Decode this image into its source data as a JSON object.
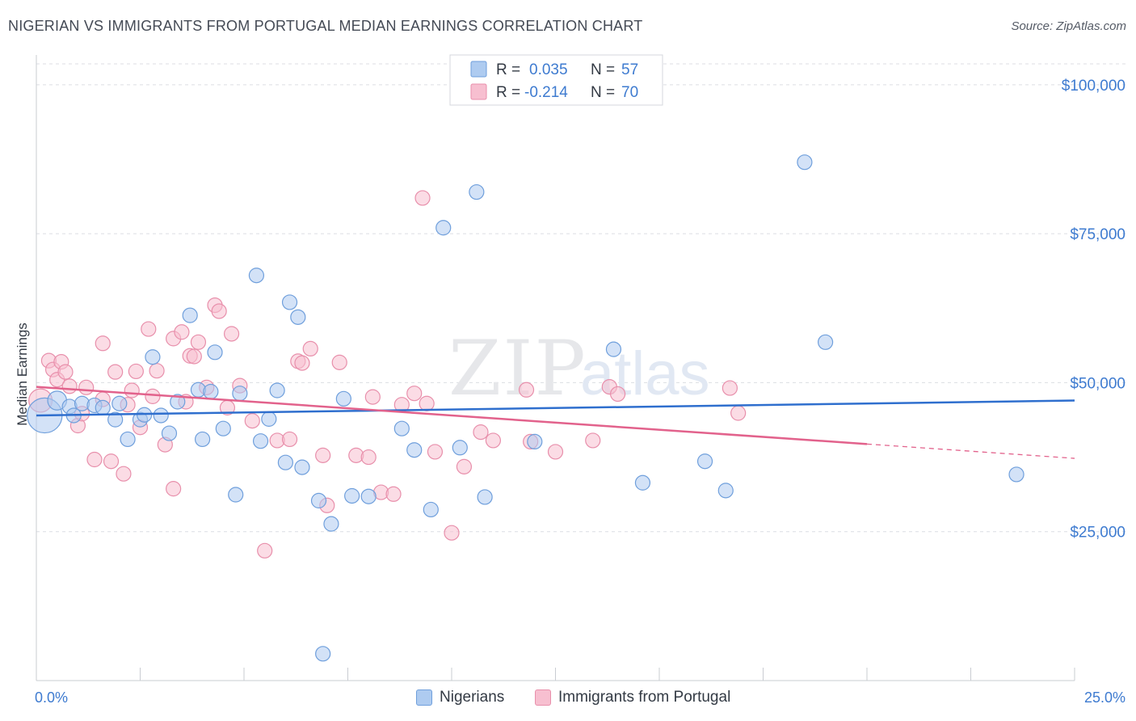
{
  "title": "NIGERIAN VS IMMIGRANTS FROM PORTUGAL MEDIAN EARNINGS CORRELATION CHART",
  "source": "Source: ZipAtlas.com",
  "watermark": {
    "zip": "ZIP",
    "atlas": "atlas"
  },
  "legend_top": {
    "rows": [
      {
        "r_label": "R =",
        "r_value": "0.035",
        "n_label": "N =",
        "n_value": "57"
      },
      {
        "r_label": "R =",
        "r_value": "-0.214",
        "n_label": "N =",
        "n_value": "70"
      }
    ]
  },
  "chart_data": {
    "type": "scatter",
    "title": "NIGERIAN VS IMMIGRANTS FROM PORTUGAL MEDIAN EARNINGS CORRELATION CHART",
    "ylabel": "Median Earnings",
    "xlim": [
      0,
      25
    ],
    "ylim": [
      0,
      105000
    ],
    "x_tick_labels": {
      "min": "0.0%",
      "max": "25.0%"
    },
    "y_ticks": [
      {
        "value": 25000,
        "label": "$25,000"
      },
      {
        "value": 50000,
        "label": "$50,000"
      },
      {
        "value": 75000,
        "label": "$75,000"
      },
      {
        "value": 100000,
        "label": "$100,000"
      }
    ],
    "grid": true,
    "colors": {
      "nigerians_fill": "#aecbf0",
      "nigerians_stroke": "#6f9fdc",
      "nigerians_line": "#2f6fce",
      "portugal_fill": "#f7bfd0",
      "portugal_stroke": "#e88fab",
      "portugal_line": "#e2628c",
      "axis_label": "#3e7bd0"
    },
    "series": [
      {
        "name": "Nigerians",
        "r": 0.035,
        "n": 57,
        "trend": {
          "x0": 0,
          "y0": 44500,
          "x1": 25,
          "y1": 47000
        },
        "points": [
          [
            0.2,
            44500,
            2.4
          ],
          [
            0.5,
            47000,
            1.3
          ],
          [
            0.8,
            46000,
            1
          ],
          [
            0.9,
            44500,
            1
          ],
          [
            1.1,
            46500,
            1
          ],
          [
            1.4,
            46200,
            1
          ],
          [
            1.6,
            45800,
            1
          ],
          [
            1.9,
            43800,
            1
          ],
          [
            2.0,
            46500,
            1
          ],
          [
            2.2,
            40500,
            1
          ],
          [
            2.5,
            43800,
            1
          ],
          [
            2.6,
            44600,
            1
          ],
          [
            2.8,
            54300,
            1
          ],
          [
            3.0,
            44500,
            1
          ],
          [
            3.2,
            41500,
            1
          ],
          [
            3.4,
            46800,
            1
          ],
          [
            3.7,
            61300,
            1
          ],
          [
            3.9,
            48800,
            1
          ],
          [
            4.0,
            40500,
            1
          ],
          [
            4.2,
            48500,
            1
          ],
          [
            4.3,
            55100,
            1
          ],
          [
            4.5,
            42300,
            1
          ],
          [
            4.8,
            31200,
            1
          ],
          [
            4.9,
            48200,
            1
          ],
          [
            5.3,
            68000,
            1
          ],
          [
            5.4,
            40200,
            1
          ],
          [
            5.6,
            43900,
            1
          ],
          [
            5.8,
            48700,
            1
          ],
          [
            6.0,
            36600,
            1
          ],
          [
            6.1,
            63500,
            1
          ],
          [
            6.3,
            61000,
            1
          ],
          [
            6.4,
            35800,
            1
          ],
          [
            6.8,
            30200,
            1
          ],
          [
            6.9,
            4500,
            1
          ],
          [
            7.1,
            26300,
            1
          ],
          [
            7.4,
            47300,
            1
          ],
          [
            7.6,
            31000,
            1
          ],
          [
            8.0,
            30900,
            1
          ],
          [
            8.8,
            42300,
            1
          ],
          [
            9.1,
            38700,
            1
          ],
          [
            9.5,
            28700,
            1
          ],
          [
            9.8,
            76000,
            1
          ],
          [
            10.2,
            39100,
            1
          ],
          [
            10.6,
            82000,
            1
          ],
          [
            10.8,
            30800,
            1
          ],
          [
            12.0,
            40100,
            1
          ],
          [
            13.9,
            55600,
            1
          ],
          [
            14.6,
            33200,
            1
          ],
          [
            16.1,
            36800,
            1
          ],
          [
            16.6,
            31900,
            1
          ],
          [
            18.5,
            87000,
            1
          ],
          [
            19.0,
            56800,
            1
          ],
          [
            23.6,
            34600,
            1
          ]
        ]
      },
      {
        "name": "Immigrants from Portugal",
        "r": -0.214,
        "n": 70,
        "trend": {
          "x0": 0,
          "y0": 49300,
          "x1": 20,
          "y1": 39700,
          "dash_x1": 25,
          "dash_y1": 37300
        },
        "points": [
          [
            0.1,
            47000,
            1.6
          ],
          [
            0.3,
            53700,
            1
          ],
          [
            0.4,
            52200,
            1
          ],
          [
            0.5,
            50500,
            1
          ],
          [
            0.6,
            53500,
            1
          ],
          [
            0.7,
            51800,
            1
          ],
          [
            0.8,
            49400,
            1
          ],
          [
            1.0,
            42800,
            1
          ],
          [
            1.1,
            44800,
            1
          ],
          [
            1.2,
            49200,
            1
          ],
          [
            1.4,
            37100,
            1
          ],
          [
            1.6,
            56600,
            1
          ],
          [
            1.6,
            47200,
            1
          ],
          [
            1.8,
            36800,
            1
          ],
          [
            1.9,
            51800,
            1
          ],
          [
            2.1,
            34700,
            1
          ],
          [
            2.2,
            46300,
            1
          ],
          [
            2.3,
            48700,
            1
          ],
          [
            2.4,
            51900,
            1
          ],
          [
            2.5,
            42500,
            1
          ],
          [
            2.7,
            59000,
            1
          ],
          [
            2.8,
            47700,
            1
          ],
          [
            2.9,
            52000,
            1
          ],
          [
            3.1,
            39600,
            1
          ],
          [
            3.3,
            32200,
            1
          ],
          [
            3.3,
            57400,
            1
          ],
          [
            3.5,
            58500,
            1
          ],
          [
            3.6,
            46800,
            1
          ],
          [
            3.7,
            54500,
            1
          ],
          [
            3.8,
            54400,
            1
          ],
          [
            3.9,
            56800,
            1
          ],
          [
            4.1,
            49200,
            1
          ],
          [
            4.3,
            63000,
            1
          ],
          [
            4.4,
            62000,
            1
          ],
          [
            4.6,
            45800,
            1
          ],
          [
            4.7,
            58200,
            1
          ],
          [
            4.9,
            49500,
            1
          ],
          [
            5.2,
            43600,
            1
          ],
          [
            5.5,
            21800,
            1
          ],
          [
            5.8,
            40300,
            1
          ],
          [
            6.1,
            40500,
            1
          ],
          [
            6.3,
            53600,
            1
          ],
          [
            6.4,
            53300,
            1
          ],
          [
            6.6,
            55700,
            1
          ],
          [
            6.9,
            37800,
            1
          ],
          [
            7.0,
            29400,
            1
          ],
          [
            7.3,
            53400,
            1
          ],
          [
            7.7,
            37800,
            1
          ],
          [
            8.0,
            37500,
            1
          ],
          [
            8.1,
            47600,
            1
          ],
          [
            8.3,
            31600,
            1
          ],
          [
            8.6,
            31300,
            1
          ],
          [
            8.8,
            46300,
            1
          ],
          [
            9.1,
            48200,
            1
          ],
          [
            9.3,
            81000,
            1
          ],
          [
            9.4,
            46500,
            1
          ],
          [
            9.6,
            38400,
            1
          ],
          [
            10.0,
            24800,
            1
          ],
          [
            10.3,
            35900,
            1
          ],
          [
            10.7,
            41700,
            1
          ],
          [
            11.0,
            40300,
            1
          ],
          [
            11.8,
            48800,
            1
          ],
          [
            11.9,
            40100,
            1
          ],
          [
            12.5,
            38400,
            1
          ],
          [
            13.4,
            40300,
            1
          ],
          [
            13.8,
            49300,
            1
          ],
          [
            14.0,
            48100,
            1
          ],
          [
            16.7,
            49100,
            1
          ],
          [
            16.9,
            44900,
            1
          ]
        ]
      }
    ]
  },
  "legend_bottom": [
    "Nigerians",
    "Immigrants from Portugal"
  ]
}
